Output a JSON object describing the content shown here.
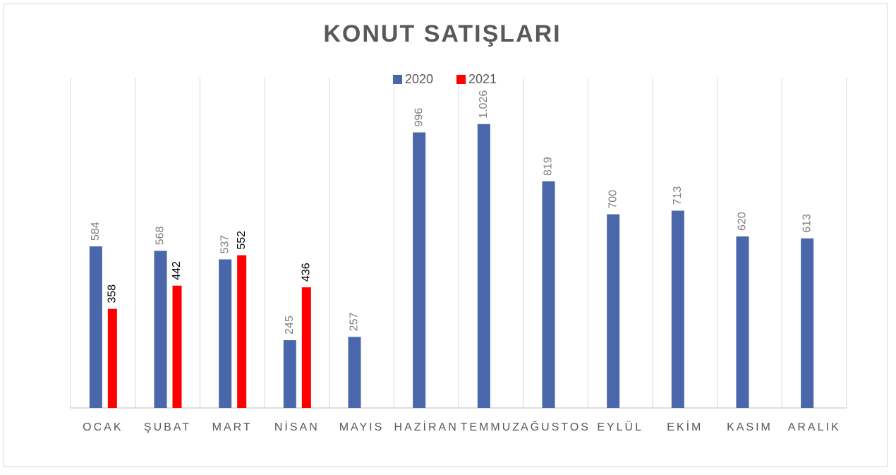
{
  "chart_data": {
    "type": "bar",
    "title": "KONUT SATIŞLARI",
    "categories": [
      "OCAK",
      "ŞUBAT",
      "MART",
      "NİSAN",
      "MAYIS",
      "HAZİRAN",
      "TEMMUZ",
      "AĞUSTOS",
      "EYLÜL",
      "EKİM",
      "KASIM",
      "ARALIK"
    ],
    "series": [
      {
        "name": "2020",
        "color": "#4a67ac",
        "values": [
          584,
          568,
          537,
          245,
          257,
          996,
          1026,
          819,
          700,
          713,
          620,
          613
        ],
        "value_labels": [
          "584",
          "568",
          "537",
          "245",
          "257",
          "996",
          "1.026",
          "819",
          "700",
          "713",
          "620",
          "613"
        ]
      },
      {
        "name": "2021",
        "color": "#ff0000",
        "values": [
          358,
          442,
          552,
          436,
          null,
          null,
          null,
          null,
          null,
          null,
          null,
          null
        ]
      }
    ],
    "legend": "top"
  }
}
